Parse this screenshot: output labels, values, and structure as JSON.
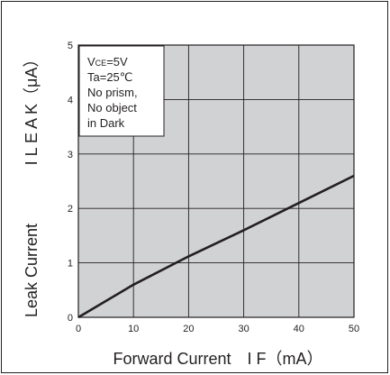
{
  "chart_data": {
    "type": "line",
    "title": "",
    "xlabel": "Forward Current　I F（mA）",
    "ylabel_parts": [
      "Leak Current",
      "I L E A K（μA）"
    ],
    "xlim": [
      0,
      50
    ],
    "ylim": [
      0,
      5
    ],
    "x_ticks": [
      "0",
      "10",
      "20",
      "30",
      "40",
      "50"
    ],
    "y_ticks": [
      "0",
      "1",
      "2",
      "3",
      "4",
      "5"
    ],
    "grid": true,
    "plot_background": "#d1d2d4",
    "line_color": "#231f20",
    "annotation_lines": [
      "VCE=5V",
      "Ta=25℃",
      "No prism,",
      "No object",
      "in Dark"
    ],
    "series": [
      {
        "x": [
          0,
          10,
          20,
          30,
          40,
          50
        ],
        "y": [
          0,
          0.6,
          1.12,
          1.6,
          2.1,
          2.6
        ]
      }
    ]
  }
}
